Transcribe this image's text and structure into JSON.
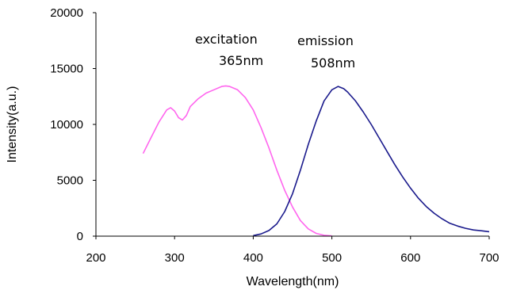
{
  "chart_data": {
    "type": "line",
    "title": "",
    "xlabel": "Wavelength(nm)",
    "ylabel": "Intensity(a.u.)",
    "xlim": [
      200,
      700
    ],
    "ylim": [
      0,
      20000
    ],
    "x_ticks": [
      "200",
      "300",
      "400",
      "500",
      "600",
      "700"
    ],
    "y_ticks": [
      "0",
      "5000",
      "10000",
      "15000",
      "20000"
    ],
    "grid": false,
    "legend": "none",
    "series": [
      {
        "color": "#ff66ee",
        "x": [
          260,
          270,
          280,
          290,
          295,
          300,
          305,
          310,
          315,
          320,
          330,
          340,
          350,
          360,
          365,
          370,
          380,
          390,
          400,
          410,
          420,
          430,
          440,
          450,
          460,
          470,
          480,
          490,
          500
        ],
        "y": [
          7400,
          8800,
          10200,
          11300,
          11500,
          11200,
          10600,
          10400,
          10800,
          11600,
          12300,
          12800,
          13100,
          13400,
          13450,
          13400,
          13100,
          12400,
          11300,
          9700,
          7900,
          5900,
          4100,
          2600,
          1400,
          650,
          250,
          80,
          20
        ]
      },
      {
        "color": "#1a1a8c",
        "x": [
          400,
          410,
          420,
          430,
          440,
          450,
          460,
          470,
          480,
          490,
          500,
          508,
          515,
          520,
          530,
          540,
          550,
          560,
          570,
          580,
          590,
          600,
          610,
          620,
          630,
          640,
          650,
          660,
          670,
          680,
          690,
          700
        ],
        "y": [
          50,
          200,
          500,
          1100,
          2200,
          3800,
          5900,
          8200,
          10300,
          12100,
          13100,
          13400,
          13200,
          12900,
          12100,
          11100,
          10000,
          8800,
          7600,
          6400,
          5300,
          4300,
          3400,
          2650,
          2050,
          1550,
          1150,
          900,
          700,
          550,
          480,
          400
        ]
      }
    ],
    "annotations": [
      {
        "line1": "excitation",
        "line2": "365nm"
      },
      {
        "line1": "emission",
        "line2": "508nm"
      }
    ]
  }
}
